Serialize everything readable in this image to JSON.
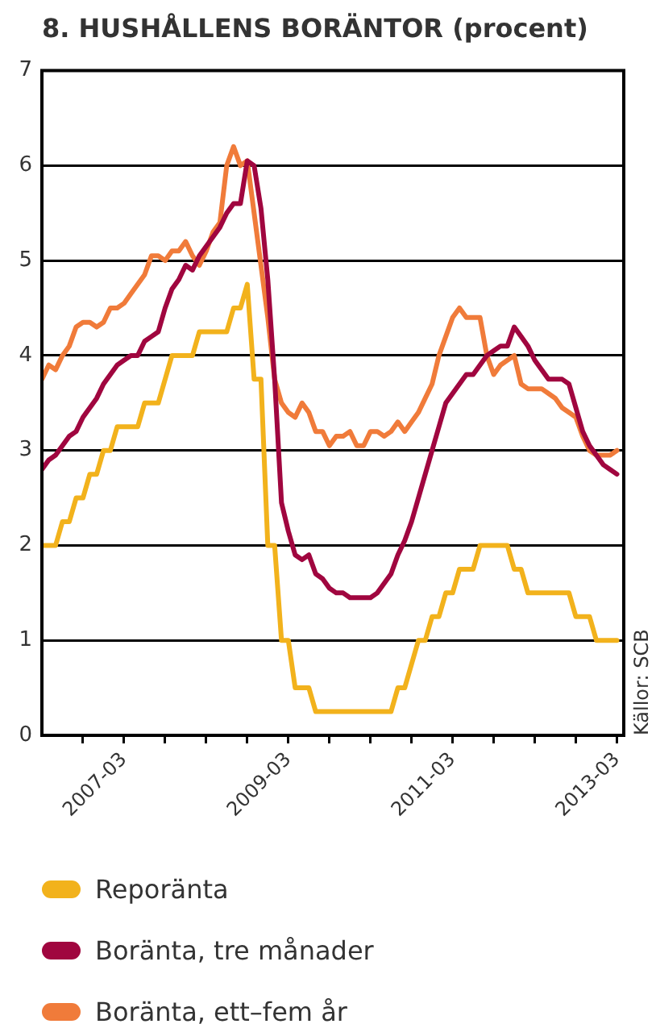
{
  "chart_data": {
    "type": "line",
    "title": "8. HUSHÅLLENS BORÄNTOR (procent)",
    "annotations": [
      "Källor: SCB"
    ],
    "x": [
      "2006-03",
      "2006-04",
      "2006-05",
      "2006-06",
      "2006-07",
      "2006-08",
      "2006-09",
      "2006-10",
      "2006-11",
      "2006-12",
      "2007-01",
      "2007-02",
      "2007-03",
      "2007-04",
      "2007-05",
      "2007-06",
      "2007-07",
      "2007-08",
      "2007-09",
      "2007-10",
      "2007-11",
      "2007-12",
      "2008-01",
      "2008-02",
      "2008-03",
      "2008-04",
      "2008-05",
      "2008-06",
      "2008-07",
      "2008-08",
      "2008-09",
      "2008-10",
      "2008-11",
      "2008-12",
      "2009-01",
      "2009-02",
      "2009-03",
      "2009-04",
      "2009-05",
      "2009-06",
      "2009-07",
      "2009-08",
      "2009-09",
      "2009-10",
      "2009-11",
      "2009-12",
      "2010-01",
      "2010-02",
      "2010-03",
      "2010-04",
      "2010-05",
      "2010-06",
      "2010-07",
      "2010-08",
      "2010-09",
      "2010-10",
      "2010-11",
      "2010-12",
      "2011-01",
      "2011-02",
      "2011-03",
      "2011-04",
      "2011-05",
      "2011-06",
      "2011-07",
      "2011-08",
      "2011-09",
      "2011-10",
      "2011-11",
      "2011-12",
      "2012-01",
      "2012-02",
      "2012-03",
      "2012-04",
      "2012-05",
      "2012-06",
      "2012-07",
      "2012-08",
      "2012-09",
      "2012-10",
      "2012-11",
      "2012-12",
      "2013-01",
      "2013-02",
      "2013-03"
    ],
    "series": [
      {
        "name": "Reporänta",
        "color": "#f2b21c",
        "values": [
          2,
          2,
          2,
          2.25,
          2.25,
          2.5,
          2.5,
          2.75,
          2.75,
          3,
          3,
          3.25,
          3.25,
          3.25,
          3.25,
          3.5,
          3.5,
          3.5,
          3.75,
          4,
          4,
          4,
          4,
          4.25,
          4.25,
          4.25,
          4.25,
          4.25,
          4.5,
          4.5,
          4.75,
          3.75,
          3.75,
          2,
          2,
          1,
          1,
          0.5,
          0.5,
          0.5,
          0.25,
          0.25,
          0.25,
          0.25,
          0.25,
          0.25,
          0.25,
          0.25,
          0.25,
          0.25,
          0.25,
          0.25,
          0.5,
          0.5,
          0.75,
          1,
          1,
          1.25,
          1.25,
          1.5,
          1.5,
          1.75,
          1.75,
          1.75,
          2,
          2,
          2,
          2,
          2,
          1.75,
          1.75,
          1.5,
          1.5,
          1.5,
          1.5,
          1.5,
          1.5,
          1.5,
          1.25,
          1.25,
          1.25,
          1,
          1,
          1,
          1
        ]
      },
      {
        "name": "Boränta, tre månader",
        "color": "#a0063f",
        "values": [
          2.8,
          2.9,
          2.95,
          3.05,
          3.15,
          3.2,
          3.35,
          3.45,
          3.55,
          3.7,
          3.8,
          3.9,
          3.95,
          4,
          4,
          4.15,
          4.2,
          4.25,
          4.5,
          4.7,
          4.8,
          4.95,
          4.9,
          5.05,
          5.15,
          5.25,
          5.35,
          5.5,
          5.6,
          5.6,
          6.05,
          6,
          5.55,
          4.8,
          3.75,
          2.45,
          2.15,
          1.9,
          1.85,
          1.9,
          1.7,
          1.65,
          1.55,
          1.5,
          1.5,
          1.45,
          1.45,
          1.45,
          1.45,
          1.5,
          1.6,
          1.7,
          1.9,
          2.05,
          2.25,
          2.5,
          2.75,
          3,
          3.25,
          3.5,
          3.6,
          3.7,
          3.8,
          3.8,
          3.9,
          4,
          4.05,
          4.1,
          4.1,
          4.3,
          4.2,
          4.1,
          3.95,
          3.85,
          3.75,
          3.75,
          3.75,
          3.7,
          3.45,
          3.2,
          3.05,
          2.95,
          2.85,
          2.8,
          2.75
        ]
      },
      {
        "name": "Boränta, ett–fem år",
        "color": "#f07b3a",
        "values": [
          3.75,
          3.9,
          3.85,
          4,
          4.1,
          4.3,
          4.35,
          4.35,
          4.3,
          4.35,
          4.5,
          4.5,
          4.55,
          4.65,
          4.75,
          4.85,
          5.05,
          5.05,
          5,
          5.1,
          5.1,
          5.2,
          5.05,
          4.95,
          5.1,
          5.3,
          5.4,
          6,
          6.2,
          6,
          6.05,
          5.5,
          4.95,
          4.4,
          3.75,
          3.5,
          3.4,
          3.35,
          3.5,
          3.4,
          3.2,
          3.2,
          3.05,
          3.15,
          3.15,
          3.2,
          3.05,
          3.05,
          3.2,
          3.2,
          3.15,
          3.2,
          3.3,
          3.2,
          3.3,
          3.4,
          3.55,
          3.7,
          4,
          4.2,
          4.4,
          4.5,
          4.4,
          4.4,
          4.4,
          4,
          3.8,
          3.9,
          3.95,
          4,
          3.7,
          3.65,
          3.65,
          3.65,
          3.6,
          3.55,
          3.45,
          3.4,
          3.35,
          3.15,
          3,
          2.95,
          2.95,
          2.95,
          3
        ]
      }
    ],
    "xlim": [
      "2006-03",
      "2013-04"
    ],
    "xticks": [
      {
        "value": "2006-09",
        "label": null
      },
      {
        "value": "2007-03",
        "label": "2007-03"
      },
      {
        "value": "2007-09",
        "label": null
      },
      {
        "value": "2008-03",
        "label": null
      },
      {
        "value": "2008-09",
        "label": null
      },
      {
        "value": "2009-03",
        "label": "2009-03"
      },
      {
        "value": "2009-09",
        "label": null
      },
      {
        "value": "2010-03",
        "label": null
      },
      {
        "value": "2010-09",
        "label": null
      },
      {
        "value": "2011-03",
        "label": "2011-03"
      },
      {
        "value": "2011-09",
        "label": null
      },
      {
        "value": "2012-03",
        "label": null
      },
      {
        "value": "2012-09",
        "label": null
      },
      {
        "value": "2013-03",
        "label": "2013-03"
      }
    ],
    "ylim": [
      0,
      7
    ],
    "yticks": [
      0,
      1,
      2,
      3,
      4,
      5,
      6,
      7
    ],
    "grid": "y",
    "legend": "bottom"
  }
}
